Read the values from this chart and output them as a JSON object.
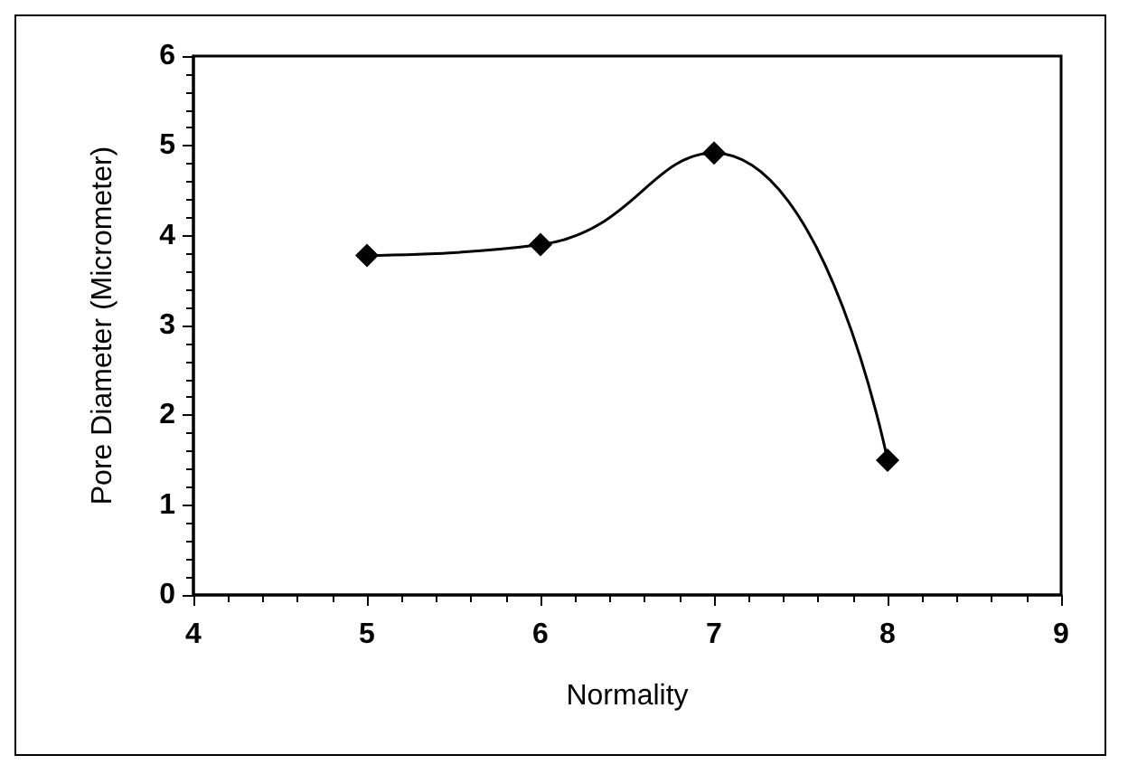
{
  "chart_data": {
    "type": "line",
    "xlabel": "Normality",
    "ylabel": "Pore Diameter (Micrometer)",
    "x": [
      5,
      6,
      7,
      8
    ],
    "series": [
      {
        "color": "#000000",
        "values": [
          3.78,
          3.9,
          4.92,
          1.5
        ]
      }
    ],
    "xlim": [
      4,
      9
    ],
    "xticks": [
      4,
      5,
      6,
      7,
      8,
      9
    ],
    "ylim": [
      0,
      6
    ],
    "yticks": [
      0,
      1,
      2,
      3,
      4,
      5,
      6
    ],
    "grid": false,
    "marker": "diamond",
    "line_style": "solid"
  }
}
